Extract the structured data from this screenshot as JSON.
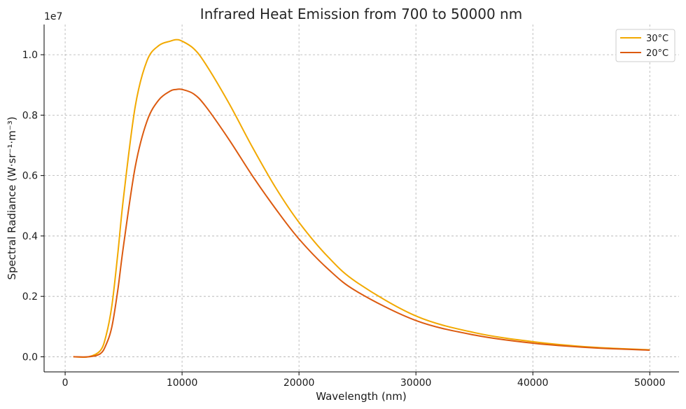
{
  "chart_data": {
    "type": "line",
    "title": "Infrared Heat Emission from 700 to 50000 nm",
    "xlabel": "Wavelength (nm)",
    "ylabel": "Spectral Radiance (W·sr⁻¹·m⁻³)",
    "y_offset_label": "1e7",
    "xlim": [
      -1800,
      52500
    ],
    "ylim": [
      -0.05,
      1.1
    ],
    "y_scale_factor": 10000000,
    "grid": true,
    "legend_position": "top-right",
    "x_ticks": [
      0,
      10000,
      20000,
      30000,
      40000,
      50000
    ],
    "x_tick_labels": [
      "0",
      "10000",
      "20000",
      "30000",
      "40000",
      "50000"
    ],
    "y_ticks": [
      0.0,
      0.2,
      0.4,
      0.6,
      0.8,
      1.0
    ],
    "y_tick_labels": [
      "0.0",
      "0.2",
      "0.4",
      "0.6",
      "0.8",
      "1.0"
    ],
    "x": [
      700,
      2000,
      3000,
      3500,
      4000,
      4500,
      5000,
      6000,
      7000,
      8000,
      9000,
      9500,
      10000,
      11000,
      12000,
      14000,
      16000,
      18000,
      20000,
      22500,
      25000,
      30000,
      35000,
      40000,
      45000,
      50000
    ],
    "series": [
      {
        "name": "30°C",
        "color": "#f2a900",
        "values": [
          0.0,
          0.0,
          0.02,
          0.07,
          0.17,
          0.34,
          0.53,
          0.83,
          0.98,
          1.03,
          1.045,
          1.05,
          1.045,
          1.02,
          0.97,
          0.84,
          0.695,
          0.56,
          0.445,
          0.33,
          0.245,
          0.135,
          0.08,
          0.05,
          0.032,
          0.023
        ]
      },
      {
        "name": "20°C",
        "color": "#dc5a0f",
        "values": [
          0.0,
          0.0,
          0.01,
          0.04,
          0.1,
          0.22,
          0.37,
          0.63,
          0.78,
          0.85,
          0.88,
          0.885,
          0.885,
          0.87,
          0.83,
          0.72,
          0.6,
          0.49,
          0.39,
          0.29,
          0.215,
          0.12,
          0.072,
          0.045,
          0.03,
          0.022
        ]
      }
    ]
  }
}
